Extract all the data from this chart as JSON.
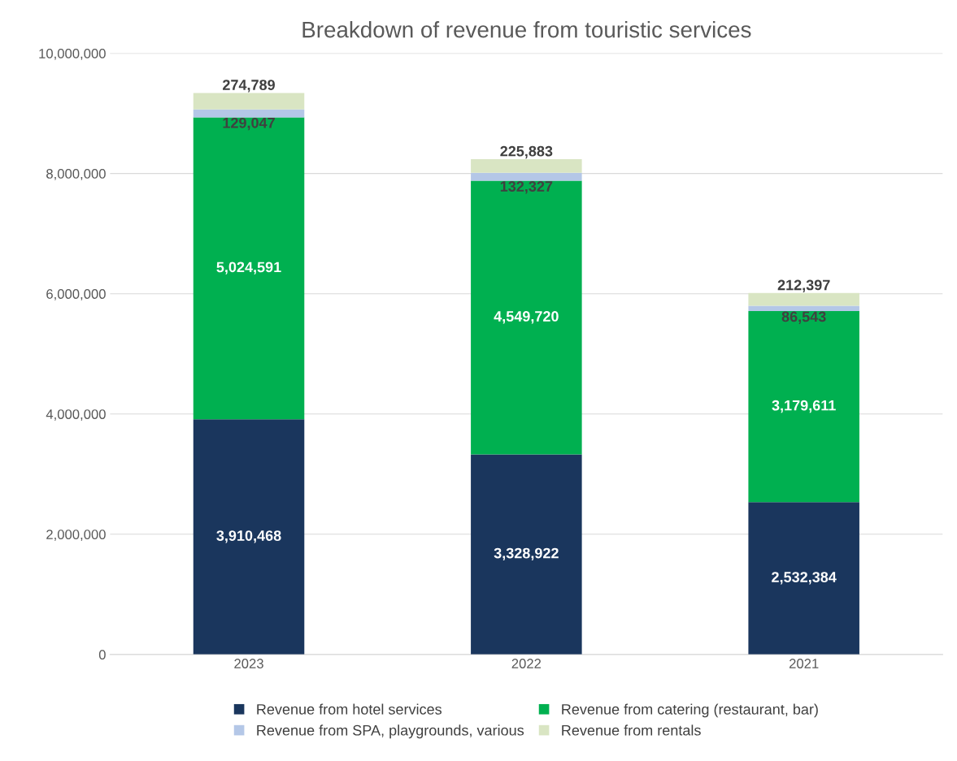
{
  "chart_data": {
    "type": "bar",
    "title": "Breakdown of revenue from touristic services",
    "stacked": true,
    "categories": [
      "2023",
      "2022",
      "2021"
    ],
    "series": [
      {
        "name": "Revenue from hotel services",
        "color": "#1a365d",
        "values": [
          3910468,
          3328922,
          2532384
        ],
        "value_labels": [
          "3,910,468",
          "3,328,922",
          "2,532,384"
        ]
      },
      {
        "name": "Revenue from catering (restaurant, bar)",
        "color": "#00b050",
        "values": [
          5024591,
          4549720,
          3179611
        ],
        "value_labels": [
          "5,024,591",
          "4,549,720",
          "3,179,611"
        ]
      },
      {
        "name": "Revenue from SPA, playgrounds, various",
        "color": "#b4c7e7",
        "values": [
          129047,
          132327,
          86543
        ],
        "value_labels": [
          "129,047",
          "132,327",
          "86,543"
        ]
      },
      {
        "name": "Revenue from rentals",
        "color": "#d9e5c3",
        "values": [
          274789,
          225883,
          212397
        ],
        "value_labels": [
          "274,789",
          "225,883",
          "212,397"
        ]
      }
    ],
    "ylim": [
      0,
      10000000
    ],
    "yticks": [
      0,
      {
        "value": 2000000,
        "label": "2,000,000"
      },
      {
        "value": 4000000,
        "label": "4,000,000"
      },
      {
        "value": 6000000,
        "label": "6,000,000"
      },
      {
        "value": 8000000,
        "label": "8,000,000"
      },
      {
        "value": 10000000,
        "label": "10,000,000"
      }
    ],
    "grid": "y",
    "legend": "bottom"
  }
}
